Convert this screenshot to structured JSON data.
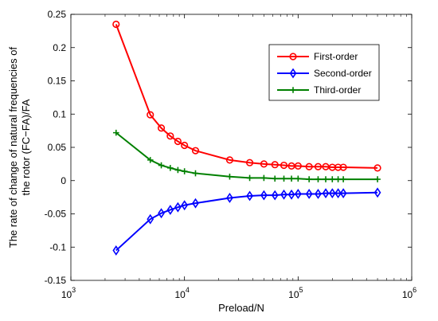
{
  "chart_data": {
    "type": "line",
    "xscale": "log",
    "xlabel": "Preload/N",
    "ylabel_lines": [
      "The rate of change of natural frequencies of",
      "the rotor (FC−FA)/FA"
    ],
    "xlim": [
      1000,
      1000000
    ],
    "ylim": [
      -0.15,
      0.25
    ],
    "x_ticks": [
      {
        "value": 1000,
        "base": "10",
        "exp": "3"
      },
      {
        "value": 10000,
        "base": "10",
        "exp": "4"
      },
      {
        "value": 100000,
        "base": "10",
        "exp": "5"
      },
      {
        "value": 1000000,
        "base": "10",
        "exp": "6"
      }
    ],
    "y_ticks": [
      {
        "value": 0.25,
        "label": "0.25"
      },
      {
        "value": 0.2,
        "label": "0.2"
      },
      {
        "value": 0.15,
        "label": "0.15"
      },
      {
        "value": 0.1,
        "label": "0.1"
      },
      {
        "value": 0.05,
        "label": "0.05"
      },
      {
        "value": 0,
        "label": "0"
      },
      {
        "value": -0.05,
        "label": "-0.05"
      },
      {
        "value": -0.1,
        "label": "-0.1"
      },
      {
        "value": -0.15,
        "label": "-0.15"
      }
    ],
    "grid": false,
    "legend_position": "top-right",
    "x": [
      2500,
      5000,
      6250,
      7500,
      8750,
      10000,
      12500,
      25000,
      37500,
      50000,
      62500,
      75000,
      87500,
      100000,
      125000,
      150000,
      175000,
      200000,
      225000,
      250000,
      500000
    ],
    "series": [
      {
        "name": "First-order",
        "color": "#ff0000",
        "marker": "circle",
        "x": [
          2500,
          5000,
          6250,
          7500,
          8750,
          10000,
          12500,
          25000,
          37500,
          50000,
          62500,
          75000,
          87500,
          100000,
          125000,
          150000,
          175000,
          200000,
          225000,
          250000,
          500000
        ],
        "values": [
          0.235,
          0.099,
          0.079,
          0.067,
          0.059,
          0.053,
          0.045,
          0.031,
          0.027,
          0.025,
          0.024,
          0.023,
          0.022,
          0.022,
          0.021,
          0.021,
          0.021,
          0.02,
          0.02,
          0.02,
          0.019
        ]
      },
      {
        "name": "Second-order",
        "color": "#0000ff",
        "marker": "diamond",
        "x": [
          2500,
          5000,
          6250,
          7500,
          8750,
          10000,
          12500,
          25000,
          37500,
          50000,
          62500,
          75000,
          87500,
          100000,
          125000,
          150000,
          175000,
          200000,
          225000,
          250000,
          500000
        ],
        "values": [
          -0.105,
          -0.058,
          -0.049,
          -0.044,
          -0.04,
          -0.037,
          -0.034,
          -0.026,
          -0.023,
          -0.022,
          -0.022,
          -0.021,
          -0.021,
          -0.02,
          -0.02,
          -0.02,
          -0.019,
          -0.019,
          -0.019,
          -0.019,
          -0.018
        ]
      },
      {
        "name": "Third-order",
        "color": "#008000",
        "marker": "plus",
        "x": [
          2500,
          5000,
          6250,
          7500,
          8750,
          10000,
          12500,
          25000,
          37500,
          50000,
          62500,
          75000,
          87500,
          100000,
          125000,
          150000,
          175000,
          200000,
          225000,
          250000,
          500000
        ],
        "values": [
          0.072,
          0.031,
          0.023,
          0.019,
          0.016,
          0.014,
          0.011,
          0.006,
          0.004,
          0.004,
          0.003,
          0.003,
          0.003,
          0.003,
          0.002,
          0.002,
          0.002,
          0.002,
          0.002,
          0.002,
          0.002
        ]
      }
    ]
  }
}
